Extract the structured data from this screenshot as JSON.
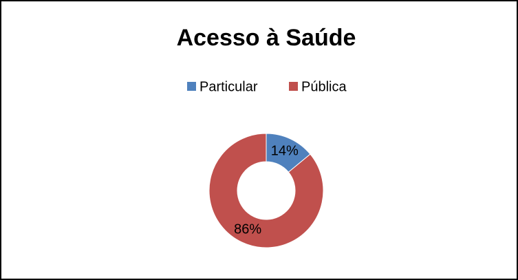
{
  "chart_data": {
    "type": "donut",
    "title": "Acesso à Saúde",
    "categories": [
      "Particular",
      "Pública"
    ],
    "values": [
      14,
      86
    ],
    "value_labels": [
      "14%",
      "86%"
    ],
    "colors": [
      "#4f81bd",
      "#c0504d"
    ],
    "legend": "top"
  }
}
